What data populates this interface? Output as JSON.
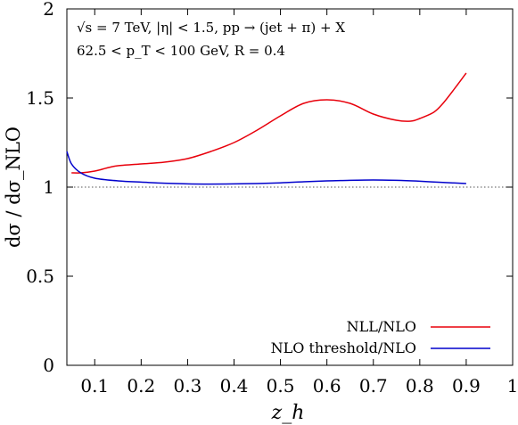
{
  "chart_data": {
    "type": "line",
    "xlabel": "z_h",
    "ylabel": "dσ / dσ_NLO",
    "xlim": [
      0.04,
      1.0
    ],
    "ylim": [
      0,
      2
    ],
    "x_ticks": [
      0.1,
      0.2,
      0.3,
      0.4,
      0.5,
      0.6,
      0.7,
      0.8,
      0.9,
      1
    ],
    "x_tick_labels": [
      "0.1",
      "0.2",
      "0.3",
      "0.4",
      "0.5",
      "0.6",
      "0.7",
      "0.8",
      "0.9",
      "1"
    ],
    "y_ticks": [
      0,
      0.5,
      1,
      1.5,
      2
    ],
    "y_tick_labels": [
      "0",
      "0.5",
      "1",
      "1.5",
      "2"
    ],
    "reference_line": {
      "y": 1,
      "style": "dotted"
    },
    "annotations": [
      "√s = 7 TeV, |η| < 1.5, pp → (jet + π) + X",
      "62.5 < p_T < 100 GeV, R = 0.4"
    ],
    "legend_position": "bottom-right",
    "series": [
      {
        "name": "NLL/NLO",
        "color": "#e8000b",
        "x": [
          0.05,
          0.07,
          0.1,
          0.13,
          0.15,
          0.2,
          0.25,
          0.3,
          0.35,
          0.4,
          0.45,
          0.5,
          0.55,
          0.6,
          0.65,
          0.7,
          0.75,
          0.78,
          0.8,
          0.83,
          0.85,
          0.88,
          0.9
        ],
        "y": [
          1.08,
          1.08,
          1.09,
          1.11,
          1.12,
          1.13,
          1.14,
          1.16,
          1.2,
          1.25,
          1.32,
          1.4,
          1.47,
          1.49,
          1.47,
          1.41,
          1.375,
          1.37,
          1.385,
          1.42,
          1.47,
          1.57,
          1.64
        ]
      },
      {
        "name": "NLO threshold/NLO",
        "color": "#0000cc",
        "x": [
          0.04,
          0.05,
          0.07,
          0.1,
          0.15,
          0.2,
          0.25,
          0.3,
          0.35,
          0.4,
          0.45,
          0.5,
          0.55,
          0.6,
          0.65,
          0.7,
          0.75,
          0.8,
          0.85,
          0.9
        ],
        "y": [
          1.2,
          1.13,
          1.08,
          1.05,
          1.035,
          1.028,
          1.022,
          1.018,
          1.017,
          1.018,
          1.02,
          1.024,
          1.03,
          1.035,
          1.038,
          1.04,
          1.038,
          1.033,
          1.026,
          1.02
        ]
      }
    ]
  }
}
